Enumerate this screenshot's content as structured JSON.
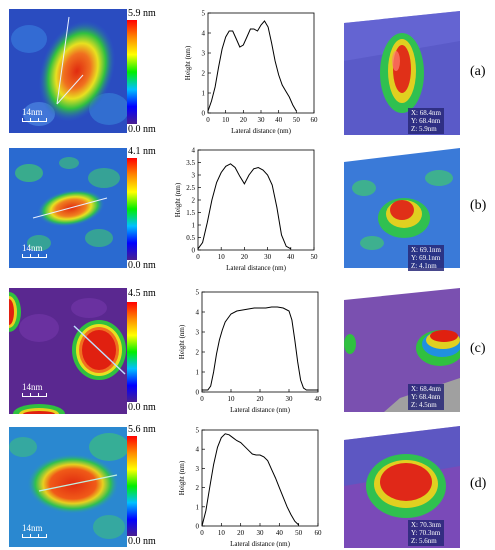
{
  "rows": [
    {
      "id": "a",
      "label": "(a)",
      "colorbar_max": "5.9 nm",
      "colorbar_min": "0.0 nm",
      "scale_label": "14nm",
      "info": [
        "X: 68.4nm",
        "Y: 68.4nm",
        "Z: 5.9nm"
      ],
      "colors": {
        "bg": "#2a50c8",
        "mid": "#22c44a",
        "core": "#e03018"
      }
    },
    {
      "id": "b",
      "label": "(b)",
      "colorbar_max": "4.1 nm",
      "colorbar_min": "0.0 nm",
      "scale_label": "14nm",
      "info": [
        "X: 69.1nm",
        "Y: 69.1nm",
        "Z: 4.1nm"
      ],
      "colors": {
        "bg": "#2a70d8",
        "mid": "#30c060",
        "core": "#e03018"
      }
    },
    {
      "id": "c",
      "label": "(c)",
      "colorbar_max": "4.5 nm",
      "colorbar_min": "0.0 nm",
      "scale_label": "14nm",
      "info": [
        "X: 68.4nm",
        "Y: 68.4nm",
        "Z: 4.5nm"
      ],
      "colors": {
        "bg": "#6a2a9a",
        "mid": "#20c040",
        "core": "#e02010"
      }
    },
    {
      "id": "d",
      "label": "(d)",
      "colorbar_max": "5.6 nm",
      "colorbar_min": "0.0 nm",
      "scale_label": "14nm",
      "info": [
        "X: 70.3nm",
        "Y: 70.3nm",
        "Z: 5.6nm"
      ],
      "colors": {
        "bg": "#2a8ad0",
        "mid": "#30c050",
        "core": "#e02818"
      }
    }
  ],
  "chart_data": [
    {
      "type": "line",
      "xlabel": "Lateral distance (nm)",
      "ylabel": "Height (nm)",
      "xlim": [
        0,
        60
      ],
      "ylim": [
        0,
        5
      ],
      "xticks": [
        0,
        10,
        20,
        30,
        40,
        50,
        60
      ],
      "yticks": [
        0,
        1,
        2,
        3,
        4,
        5
      ],
      "x": [
        0,
        2,
        4,
        6,
        8,
        10,
        12,
        14,
        16,
        18,
        20,
        22,
        24,
        26,
        28,
        30,
        32,
        34,
        36,
        38,
        40,
        42,
        44,
        46,
        48,
        50
      ],
      "y": [
        0.1,
        0.6,
        1.3,
        2.3,
        3.2,
        3.8,
        4.1,
        4.1,
        3.7,
        3.3,
        3.4,
        3.8,
        4.2,
        4.2,
        4.1,
        4.4,
        4.6,
        4.3,
        3.5,
        2.6,
        1.9,
        1.4,
        1.1,
        0.8,
        0.4,
        0.1
      ]
    },
    {
      "type": "line",
      "xlabel": "Lateral distance (nm)",
      "ylabel": "Height (nm)",
      "xlim": [
        0,
        50
      ],
      "ylim": [
        0,
        4
      ],
      "xticks": [
        0,
        10,
        20,
        30,
        40,
        50
      ],
      "yticks": [
        0,
        0.5,
        1,
        1.5,
        2,
        2.5,
        3,
        3.5,
        4
      ],
      "x": [
        0,
        2,
        4,
        6,
        8,
        10,
        12,
        14,
        16,
        18,
        20,
        22,
        24,
        26,
        28,
        30,
        32,
        34,
        36,
        38,
        40
      ],
      "y": [
        0.05,
        0.3,
        1.1,
        2.0,
        2.7,
        3.1,
        3.35,
        3.45,
        3.3,
        2.95,
        2.65,
        3.0,
        3.25,
        3.3,
        3.2,
        3.0,
        2.6,
        1.7,
        0.6,
        0.15,
        0.05
      ]
    },
    {
      "type": "line",
      "xlabel": "Lateral distance (nm)",
      "ylabel": "Height (nm)",
      "xlim": [
        0,
        40
      ],
      "ylim": [
        0,
        5
      ],
      "xticks": [
        0,
        10,
        20,
        30,
        40
      ],
      "yticks": [
        0,
        1,
        2,
        3,
        4,
        5
      ],
      "x": [
        0,
        2,
        3,
        4,
        5,
        6,
        7,
        8,
        10,
        12,
        14,
        16,
        18,
        20,
        22,
        24,
        26,
        28,
        30,
        31,
        32,
        33,
        34,
        35,
        36,
        38,
        40
      ],
      "y": [
        0.1,
        0.1,
        0.3,
        1.0,
        1.9,
        2.6,
        3.1,
        3.5,
        3.9,
        4.05,
        4.1,
        4.15,
        4.2,
        4.2,
        4.2,
        4.25,
        4.25,
        4.2,
        4.05,
        3.6,
        2.6,
        1.5,
        0.6,
        0.2,
        0.1,
        0.1,
        0.1
      ]
    },
    {
      "type": "line",
      "xlabel": "Lateral distance (nm)",
      "ylabel": "Height (nm)",
      "xlim": [
        0,
        60
      ],
      "ylim": [
        0,
        5
      ],
      "xticks": [
        0,
        10,
        20,
        30,
        40,
        50,
        60
      ],
      "yticks": [
        0,
        1,
        2,
        3,
        4,
        5
      ],
      "x": [
        0,
        2,
        4,
        6,
        8,
        10,
        12,
        14,
        16,
        18,
        20,
        22,
        24,
        26,
        28,
        30,
        32,
        34,
        36,
        38,
        40,
        42,
        44,
        46,
        48,
        50
      ],
      "y": [
        0.0,
        0.8,
        2.0,
        3.2,
        4.1,
        4.6,
        4.8,
        4.75,
        4.6,
        4.45,
        4.35,
        4.15,
        3.95,
        3.75,
        3.7,
        3.7,
        3.6,
        3.4,
        2.95,
        2.5,
        2.0,
        1.5,
        1.0,
        0.6,
        0.25,
        0.05
      ]
    }
  ]
}
